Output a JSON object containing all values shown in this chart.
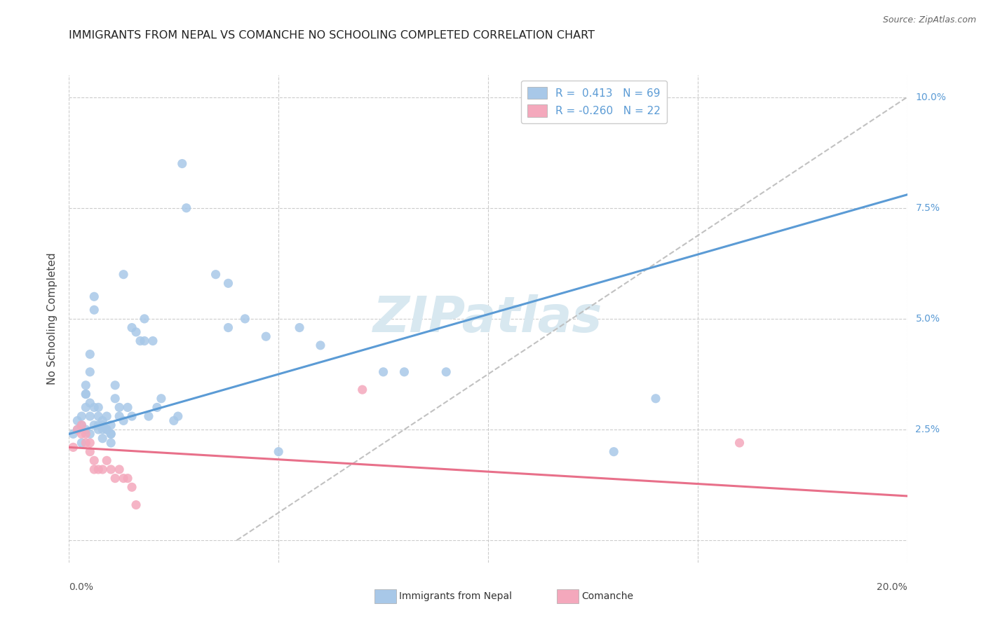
{
  "title": "IMMIGRANTS FROM NEPAL VS COMANCHE NO SCHOOLING COMPLETED CORRELATION CHART",
  "source": "Source: ZipAtlas.com",
  "ylabel": "No Schooling Completed",
  "xlim": [
    0.0,
    0.2
  ],
  "ylim": [
    -0.005,
    0.105
  ],
  "blue_color": "#A8C8E8",
  "pink_color": "#F4A8BC",
  "trendline_blue": "#5B9BD5",
  "trendline_pink": "#E8708A",
  "trendline_dash_color": "#BBBBBB",
  "watermark": "ZIPatlas",
  "watermark_color": "#D8E8F0",
  "right_tick_color": "#5B9BD5",
  "nepal_points": [
    [
      0.001,
      0.024
    ],
    [
      0.002,
      0.027
    ],
    [
      0.002,
      0.025
    ],
    [
      0.003,
      0.026
    ],
    [
      0.003,
      0.028
    ],
    [
      0.003,
      0.022
    ],
    [
      0.004,
      0.025
    ],
    [
      0.004,
      0.03
    ],
    [
      0.004,
      0.033
    ],
    [
      0.004,
      0.035
    ],
    [
      0.004,
      0.033
    ],
    [
      0.005,
      0.028
    ],
    [
      0.005,
      0.031
    ],
    [
      0.005,
      0.024
    ],
    [
      0.005,
      0.038
    ],
    [
      0.005,
      0.042
    ],
    [
      0.006,
      0.026
    ],
    [
      0.006,
      0.03
    ],
    [
      0.006,
      0.052
    ],
    [
      0.006,
      0.055
    ],
    [
      0.007,
      0.028
    ],
    [
      0.007,
      0.025
    ],
    [
      0.007,
      0.026
    ],
    [
      0.007,
      0.03
    ],
    [
      0.008,
      0.026
    ],
    [
      0.008,
      0.023
    ],
    [
      0.008,
      0.025
    ],
    [
      0.008,
      0.027
    ],
    [
      0.009,
      0.025
    ],
    [
      0.009,
      0.025
    ],
    [
      0.009,
      0.028
    ],
    [
      0.01,
      0.024
    ],
    [
      0.01,
      0.024
    ],
    [
      0.01,
      0.026
    ],
    [
      0.01,
      0.022
    ],
    [
      0.011,
      0.035
    ],
    [
      0.011,
      0.032
    ],
    [
      0.012,
      0.03
    ],
    [
      0.012,
      0.028
    ],
    [
      0.013,
      0.06
    ],
    [
      0.013,
      0.027
    ],
    [
      0.014,
      0.03
    ],
    [
      0.015,
      0.048
    ],
    [
      0.015,
      0.028
    ],
    [
      0.016,
      0.047
    ],
    [
      0.017,
      0.045
    ],
    [
      0.018,
      0.045
    ],
    [
      0.018,
      0.05
    ],
    [
      0.019,
      0.028
    ],
    [
      0.02,
      0.045
    ],
    [
      0.021,
      0.03
    ],
    [
      0.022,
      0.032
    ],
    [
      0.025,
      0.027
    ],
    [
      0.026,
      0.028
    ],
    [
      0.027,
      0.085
    ],
    [
      0.028,
      0.075
    ],
    [
      0.035,
      0.06
    ],
    [
      0.038,
      0.048
    ],
    [
      0.038,
      0.058
    ],
    [
      0.042,
      0.05
    ],
    [
      0.047,
      0.046
    ],
    [
      0.05,
      0.02
    ],
    [
      0.055,
      0.048
    ],
    [
      0.06,
      0.044
    ],
    [
      0.075,
      0.038
    ],
    [
      0.08,
      0.038
    ],
    [
      0.09,
      0.038
    ],
    [
      0.13,
      0.02
    ],
    [
      0.14,
      0.032
    ]
  ],
  "comanche_points": [
    [
      0.001,
      0.021
    ],
    [
      0.002,
      0.025
    ],
    [
      0.003,
      0.026
    ],
    [
      0.003,
      0.024
    ],
    [
      0.004,
      0.022
    ],
    [
      0.004,
      0.024
    ],
    [
      0.005,
      0.02
    ],
    [
      0.005,
      0.022
    ],
    [
      0.006,
      0.016
    ],
    [
      0.006,
      0.018
    ],
    [
      0.007,
      0.016
    ],
    [
      0.008,
      0.016
    ],
    [
      0.009,
      0.018
    ],
    [
      0.01,
      0.016
    ],
    [
      0.011,
      0.014
    ],
    [
      0.012,
      0.016
    ],
    [
      0.013,
      0.014
    ],
    [
      0.014,
      0.014
    ],
    [
      0.015,
      0.012
    ],
    [
      0.016,
      0.008
    ],
    [
      0.07,
      0.034
    ],
    [
      0.16,
      0.022
    ]
  ],
  "blue_trend_x0": 0.0,
  "blue_trend_y0": 0.024,
  "blue_trend_x1": 0.2,
  "blue_trend_y1": 0.078,
  "pink_trend_x0": 0.0,
  "pink_trend_y0": 0.021,
  "pink_trend_x1": 0.2,
  "pink_trend_y1": 0.01,
  "dash_trend_x0": 0.04,
  "dash_trend_y0": 0.0,
  "dash_trend_x1": 0.2,
  "dash_trend_y1": 0.1
}
